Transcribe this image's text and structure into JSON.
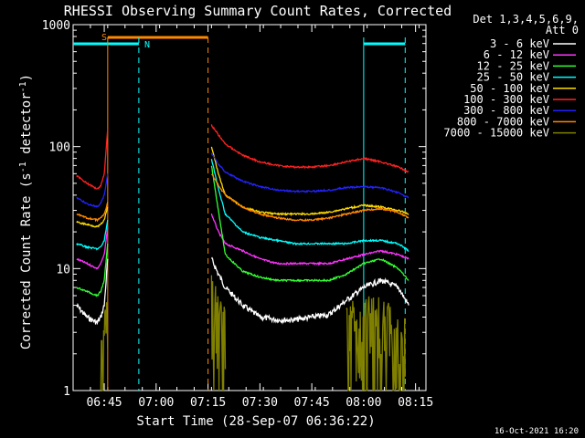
{
  "chart_data": {
    "type": "line",
    "title": "RHESSI Observing Summary Count Rates, Corrected",
    "xlabel": "Start Time (28-Sep-07 06:36:22)",
    "ylabel": "Corrected Count Rate (s⁻¹ detector⁻¹)",
    "ylabel_main": "Corrected Count Rate (s",
    "ylabel_mid": " detector",
    "ylabel_end": ")",
    "ylabel_sup": "-1",
    "y_scale": "log",
    "ylim": [
      1,
      1000
    ],
    "yticks": [
      {
        "v": 1,
        "label": "1"
      },
      {
        "v": 10,
        "label": "10"
      },
      {
        "v": 100,
        "label": "100"
      },
      {
        "v": 1000,
        "label": "1000"
      }
    ],
    "xlim": [
      "06:36",
      "08:18"
    ],
    "xticks": [
      {
        "t": "06:45",
        "label": "06:45"
      },
      {
        "t": "07:00",
        "label": "07:00"
      },
      {
        "t": "07:15",
        "label": "07:15"
      },
      {
        "t": "07:30",
        "label": "07:30"
      },
      {
        "t": "07:45",
        "label": "07:45"
      },
      {
        "t": "08:00",
        "label": "08:00"
      },
      {
        "t": "08:15",
        "label": "08:15"
      }
    ],
    "legend_header": [
      "Det 1,3,4,5,6,9,",
      "Att 0"
    ],
    "legend_placement": "right",
    "series": [
      {
        "name": "3 - 6 keV",
        "color": "#ffffff",
        "x": [
          "06:37",
          "06:40",
          "06:43",
          "06:44",
          "06:45",
          "06:46",
          "07:16",
          "07:18",
          "07:20",
          "07:25",
          "07:30",
          "07:35",
          "07:40",
          "07:45",
          "07:50",
          "07:55",
          "08:00",
          "08:05",
          "08:10",
          "08:13"
        ],
        "y": [
          5,
          4,
          3.6,
          4,
          5,
          12,
          12,
          9,
          7,
          5,
          4,
          3.8,
          3.8,
          4,
          4.2,
          5.5,
          7,
          8,
          7,
          5
        ]
      },
      {
        "name": "6 - 12 keV",
        "color": "#ff33ff",
        "x": [
          "06:37",
          "06:40",
          "06:43",
          "06:44",
          "06:45",
          "06:46",
          "07:16",
          "07:18",
          "07:20",
          "07:25",
          "07:30",
          "07:35",
          "07:40",
          "07:45",
          "07:50",
          "07:55",
          "08:00",
          "08:05",
          "08:10",
          "08:13"
        ],
        "y": [
          12,
          11,
          10,
          11,
          13,
          22,
          28,
          20,
          16,
          14,
          12,
          11,
          11,
          11,
          11,
          12,
          13,
          14,
          13,
          12
        ]
      },
      {
        "name": "12 - 25 keV",
        "color": "#33ff33",
        "x": [
          "06:37",
          "06:40",
          "06:43",
          "06:44",
          "06:45",
          "06:46",
          "07:16",
          "07:18",
          "07:20",
          "07:25",
          "07:30",
          "07:35",
          "07:40",
          "07:45",
          "07:50",
          "07:55",
          "08:00",
          "08:05",
          "08:10",
          "08:13"
        ],
        "y": [
          7,
          6.5,
          6,
          6.5,
          8,
          16,
          70,
          30,
          13,
          9.5,
          8.5,
          8,
          8,
          8,
          8,
          9,
          11,
          12,
          10,
          8
        ]
      },
      {
        "name": "25 - 50 keV",
        "color": "#00ffff",
        "x": [
          "06:37",
          "06:40",
          "06:43",
          "06:44",
          "06:45",
          "06:46",
          "07:16",
          "07:18",
          "07:20",
          "07:25",
          "07:30",
          "07:35",
          "07:40",
          "07:45",
          "07:50",
          "07:55",
          "08:00",
          "08:05",
          "08:10",
          "08:13"
        ],
        "y": [
          16,
          15,
          14.5,
          15,
          17,
          25,
          80,
          45,
          28,
          20,
          18,
          17,
          16,
          16,
          16,
          16,
          17,
          17,
          16,
          14
        ]
      },
      {
        "name": "50 - 100 keV",
        "color": "#ffdd00",
        "x": [
          "06:37",
          "06:40",
          "06:43",
          "06:44",
          "06:45",
          "06:46",
          "07:16",
          "07:18",
          "07:20",
          "07:25",
          "07:30",
          "07:35",
          "07:40",
          "07:45",
          "07:50",
          "07:55",
          "08:00",
          "08:05",
          "08:10",
          "08:13"
        ],
        "y": [
          24,
          23,
          22,
          23,
          25,
          32,
          100,
          60,
          40,
          32,
          29,
          28,
          28,
          28,
          29,
          31,
          33,
          32,
          30,
          28
        ]
      },
      {
        "name": "100 - 300 keV",
        "color": "#ff2222",
        "x": [
          "06:37",
          "06:40",
          "06:43",
          "06:44",
          "06:45",
          "06:46",
          "07:16",
          "07:18",
          "07:20",
          "07:25",
          "07:30",
          "07:35",
          "07:40",
          "07:45",
          "07:50",
          "07:55",
          "08:00",
          "08:05",
          "08:10",
          "08:13"
        ],
        "y": [
          58,
          50,
          45,
          48,
          60,
          140,
          150,
          125,
          105,
          85,
          75,
          70,
          68,
          68,
          70,
          75,
          80,
          75,
          68,
          62
        ]
      },
      {
        "name": "300 - 800 keV",
        "color": "#2222ff",
        "x": [
          "06:37",
          "06:40",
          "06:43",
          "06:44",
          "06:45",
          "06:46",
          "07:16",
          "07:18",
          "07:20",
          "07:25",
          "07:30",
          "07:35",
          "07:40",
          "07:45",
          "07:50",
          "07:55",
          "08:00",
          "08:05",
          "08:10",
          "08:13"
        ],
        "y": [
          38,
          34,
          32,
          34,
          40,
          60,
          88,
          72,
          62,
          52,
          47,
          44,
          43,
          43,
          44,
          46,
          47,
          46,
          42,
          38
        ]
      },
      {
        "name": "800 - 7000 keV",
        "color": "#ff8800",
        "x": [
          "06:37",
          "06:40",
          "06:43",
          "06:44",
          "06:45",
          "06:46",
          "07:16",
          "07:18",
          "07:20",
          "07:25",
          "07:30",
          "07:35",
          "07:40",
          "07:45",
          "07:50",
          "07:55",
          "08:00",
          "08:05",
          "08:10",
          "08:13"
        ],
        "y": [
          28,
          26,
          25,
          26,
          28,
          35,
          60,
          48,
          40,
          32,
          28,
          26,
          25,
          25,
          26,
          28,
          30,
          31,
          29,
          26
        ]
      },
      {
        "name": "7000 - 15000 keV",
        "color": "#808000",
        "x": [
          "06:44",
          "06:45",
          "06:46",
          "07:16",
          "07:18",
          "07:20",
          "07:55",
          "08:00",
          "08:05",
          "08:10",
          "08:12"
        ],
        "y": [
          1,
          1.3,
          2.2,
          3,
          2,
          1.5,
          1.8,
          2.2,
          1.9,
          1.6,
          1.3
        ]
      }
    ],
    "state_bars": [
      {
        "label": "S",
        "color": "#ff8800",
        "start": "06:46",
        "end": "07:15"
      },
      {
        "label": "N",
        "color": "#00ffff",
        "start": "06:36",
        "end": "06:55"
      },
      {
        "label": "",
        "color": "#00ffff",
        "start": "08:00",
        "end": "08:12"
      }
    ],
    "vlines": [
      {
        "t": "06:46",
        "color": "#ff8800",
        "style": "solid"
      },
      {
        "t": "06:55",
        "color": "#00ffff",
        "style": "dashed"
      },
      {
        "t": "07:15",
        "color": "#ff8800",
        "style": "dashed"
      },
      {
        "t": "08:00",
        "color": "#00ffff",
        "style": "solid"
      },
      {
        "t": "08:12",
        "color": "#00ffff",
        "style": "dashed"
      }
    ],
    "footer": "16-Oct-2021 16:20"
  }
}
